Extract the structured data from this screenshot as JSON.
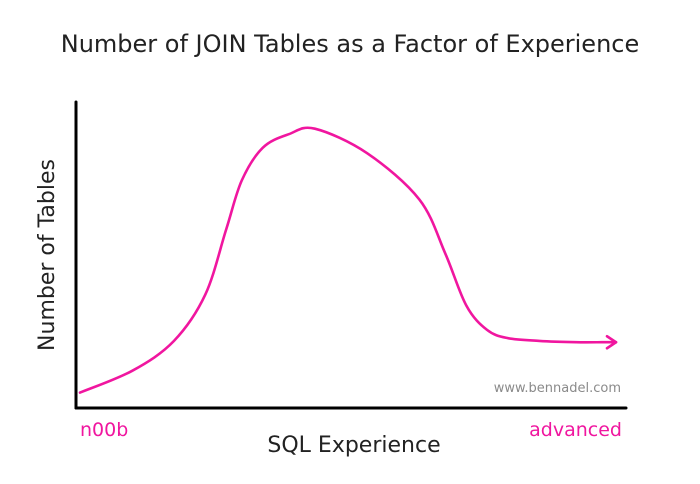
{
  "chart_data": {
    "type": "line",
    "title": "Number of JOIN Tables as a Factor of Experience",
    "xlabel": "SQL Experience",
    "ylabel": "Number of Tables",
    "x_tick_labels": {
      "start": "n00b",
      "end": "advanced"
    },
    "watermark": "www.bennadel.com",
    "xlim": [
      0,
      100
    ],
    "ylim": [
      0,
      100
    ],
    "grid": false,
    "legend": "none",
    "series": [
      {
        "color": "#f0169f",
        "ends_with_arrow": true,
        "x": [
          0,
          10,
          18,
          24,
          28,
          31,
          35,
          40,
          45,
          55,
          65,
          70,
          74,
          78,
          82,
          88,
          95,
          100
        ],
        "y": [
          2,
          10,
          21,
          38,
          62,
          80,
          92,
          97,
          99,
          90,
          73,
          53,
          34,
          25,
          22,
          21,
          20.5,
          20.5
        ]
      }
    ],
    "axis_color": "#000000",
    "text_color": "#222222",
    "tick_label_color": "#f0169f",
    "watermark_color": "#8a8a8a"
  }
}
